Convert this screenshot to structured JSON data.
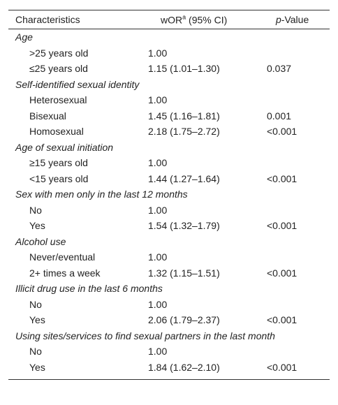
{
  "header": {
    "characteristics": "Characteristics",
    "wor": {
      "main": "wOR",
      "sup": "a",
      "rest": " (95% CI)"
    },
    "pvalue": {
      "italic": "p",
      "rest": "-Value"
    }
  },
  "groups": [
    {
      "title": "Age",
      "rows": [
        {
          "label": ">25 years old",
          "wor": "1.00"
        },
        {
          "label": "≤25 years old",
          "wor": "1.15 (1.01–1.30)",
          "p": "0.037"
        }
      ]
    },
    {
      "title": "Self-identified sexual identity",
      "rows": [
        {
          "label": "Heterosexual",
          "wor": "1.00"
        },
        {
          "label": "Bisexual",
          "wor": "1.45 (1.16–1.81)",
          "p": "0.001"
        },
        {
          "label": "Homosexual",
          "wor": "2.18 (1.75–2.72)",
          "p": "<0.001"
        }
      ]
    },
    {
      "title": "Age of sexual initiation",
      "rows": [
        {
          "label": "≥15 years old",
          "wor": "1.00"
        },
        {
          "label": "<15 years old",
          "wor": "1.44 (1.27–1.64)",
          "p": "<0.001"
        }
      ]
    },
    {
      "title": "Sex with men only in the last 12 months",
      "rows": [
        {
          "label": "No",
          "wor": "1.00"
        },
        {
          "label": "Yes",
          "wor": "1.54 (1.32–1.79)",
          "p": "<0.001"
        }
      ]
    },
    {
      "title": "Alcohol use",
      "rows": [
        {
          "label": "Never/eventual",
          "wor": "1.00"
        },
        {
          "label": "2+ times a week",
          "wor": "1.32 (1.15–1.51)",
          "p": "<0.001"
        }
      ]
    },
    {
      "title": "Illicit drug use in the last 6 months",
      "rows": [
        {
          "label": "No",
          "wor": "1.00"
        },
        {
          "label": "Yes",
          "wor": "2.06 (1.79–2.37)",
          "p": "<0.001"
        }
      ]
    },
    {
      "title": "Using sites/services to find sexual partners in the last month",
      "rows": [
        {
          "label": "No",
          "wor": "1.00"
        },
        {
          "label": "Yes",
          "wor": "1.84 (1.62–2.10)",
          "p": "<0.001"
        }
      ]
    }
  ]
}
